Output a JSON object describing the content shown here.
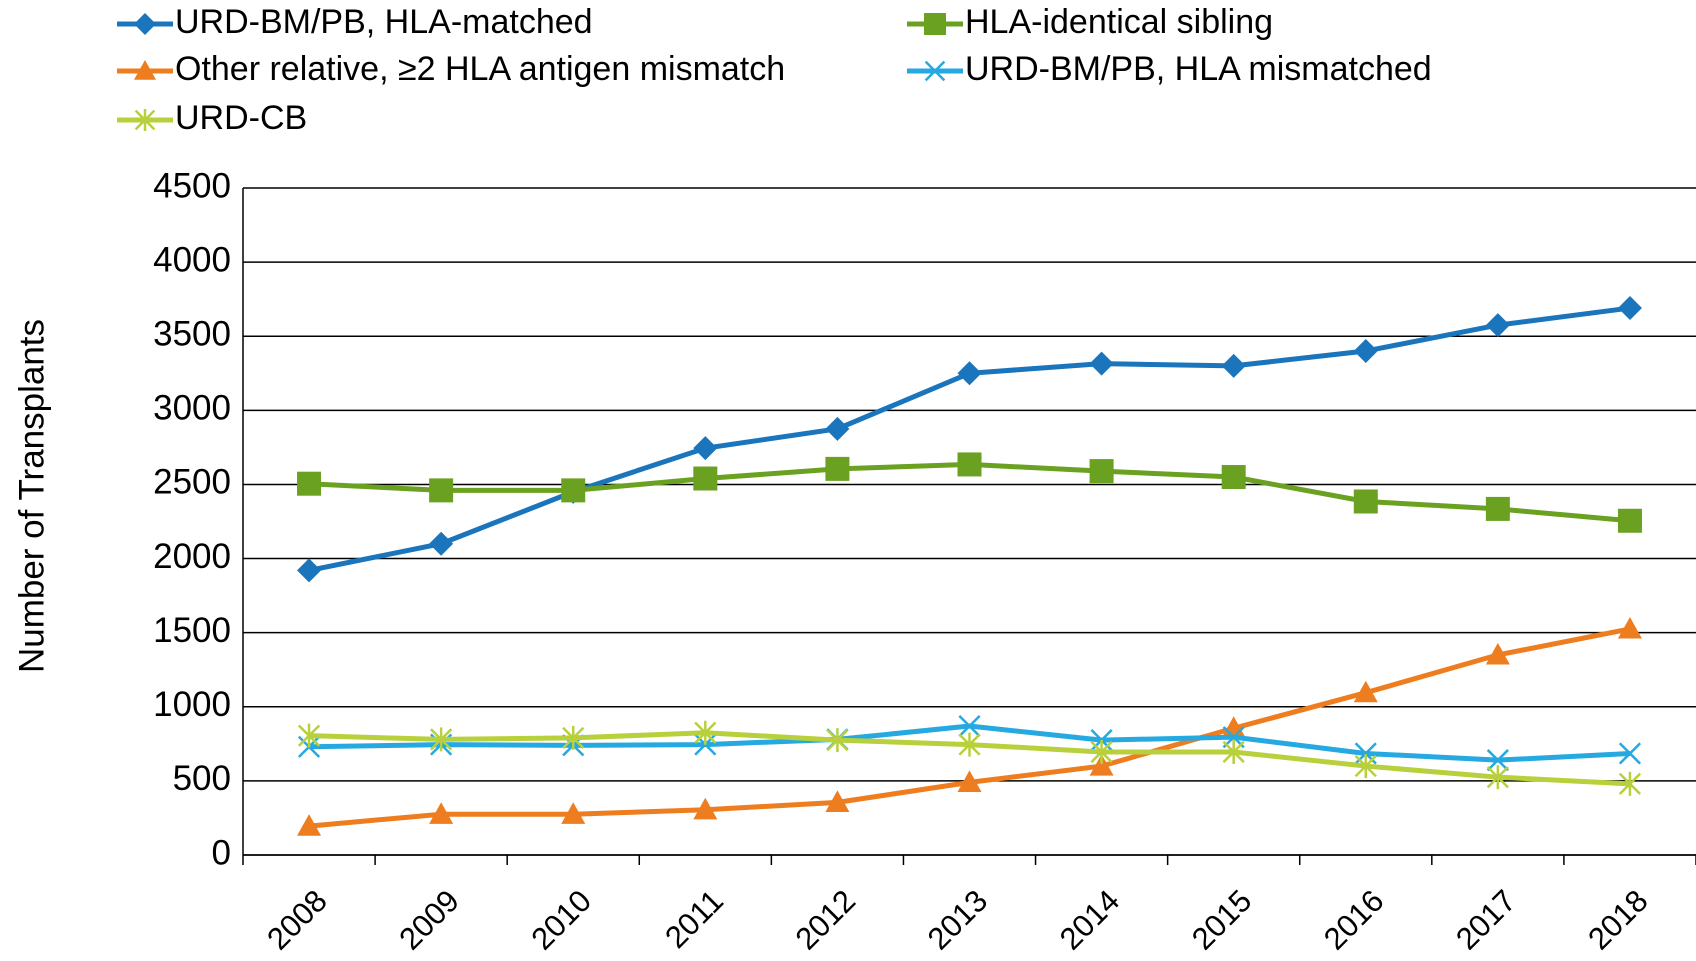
{
  "chart_data": {
    "type": "line",
    "y_label": "Number of Transplants",
    "categories": [
      "2008",
      "2009",
      "2010",
      "2011",
      "2012",
      "2013",
      "2014",
      "2015",
      "2016",
      "2017",
      "2018"
    ],
    "ylim": [
      0,
      4500
    ],
    "yticks": [
      0,
      500,
      1000,
      1500,
      2000,
      2500,
      3000,
      3500,
      4000,
      4500
    ],
    "grid": true,
    "legend": "top",
    "series": [
      {
        "name": "URD-BM/PB, HLA-matched",
        "color": "#1a75bc",
        "marker": "diamond",
        "values": [
          1920,
          2100,
          2450,
          2745,
          2875,
          3250,
          3315,
          3300,
          3400,
          3575,
          3690
        ]
      },
      {
        "name": "HLA-identical sibling",
        "color": "#6aa121",
        "marker": "square",
        "values": [
          2505,
          2460,
          2460,
          2540,
          2605,
          2635,
          2590,
          2550,
          2385,
          2335,
          2255
        ]
      },
      {
        "name": "Other relative, ≥2 HLA antigen mismatch",
        "color": "#ee7d1f",
        "marker": "triangle",
        "values": [
          195,
          275,
          275,
          305,
          355,
          490,
          600,
          855,
          1095,
          1350,
          1525
        ]
      },
      {
        "name": "URD-BM/PB, HLA mismatched",
        "color": "#25a9e0",
        "marker": "x",
        "values": [
          730,
          745,
          740,
          745,
          780,
          870,
          775,
          795,
          685,
          640,
          685
        ]
      },
      {
        "name": "URD-CB",
        "color": "#b7d03c",
        "marker": "asterisk",
        "values": [
          805,
          780,
          790,
          825,
          775,
          745,
          695,
          695,
          600,
          525,
          480
        ]
      }
    ]
  }
}
